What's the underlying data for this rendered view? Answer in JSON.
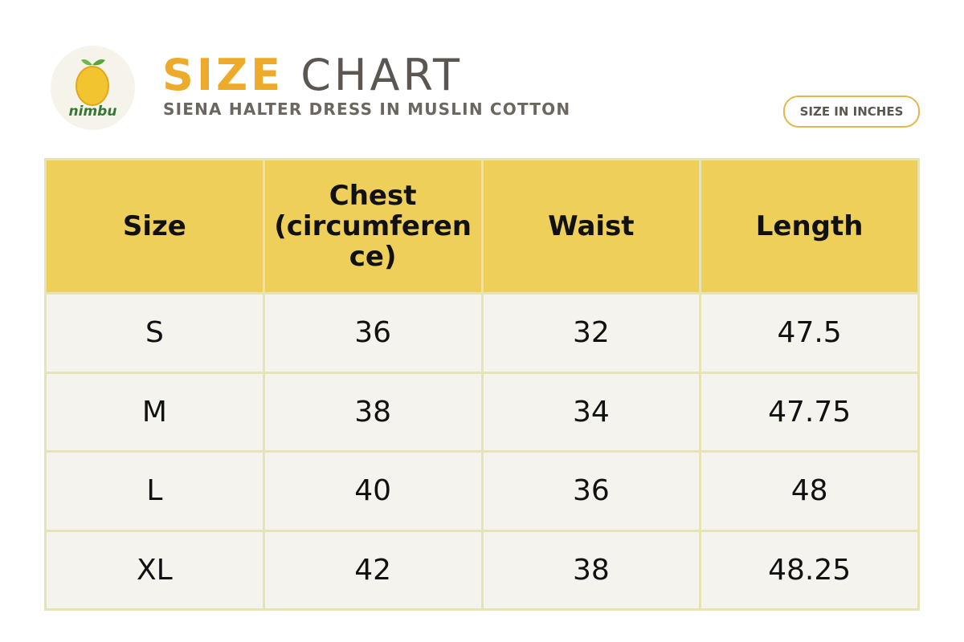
{
  "header": {
    "logo_text": "nimbu",
    "title_accent": "SIZE",
    "title_rest": "CHART",
    "subtitle": "SIENA HALTER DRESS IN MUSLIN COTTON",
    "badge": "SIZE IN INCHES"
  },
  "table": {
    "columns": [
      "Size",
      "Chest (circumference)",
      "Waist",
      "Length"
    ],
    "rows": [
      [
        "S",
        "36",
        "32",
        "47.5"
      ],
      [
        "M",
        "38",
        "34",
        "47.75"
      ],
      [
        "L",
        "40",
        "36",
        "48"
      ],
      [
        "XL",
        "42",
        "38",
        "48.25"
      ]
    ]
  }
}
